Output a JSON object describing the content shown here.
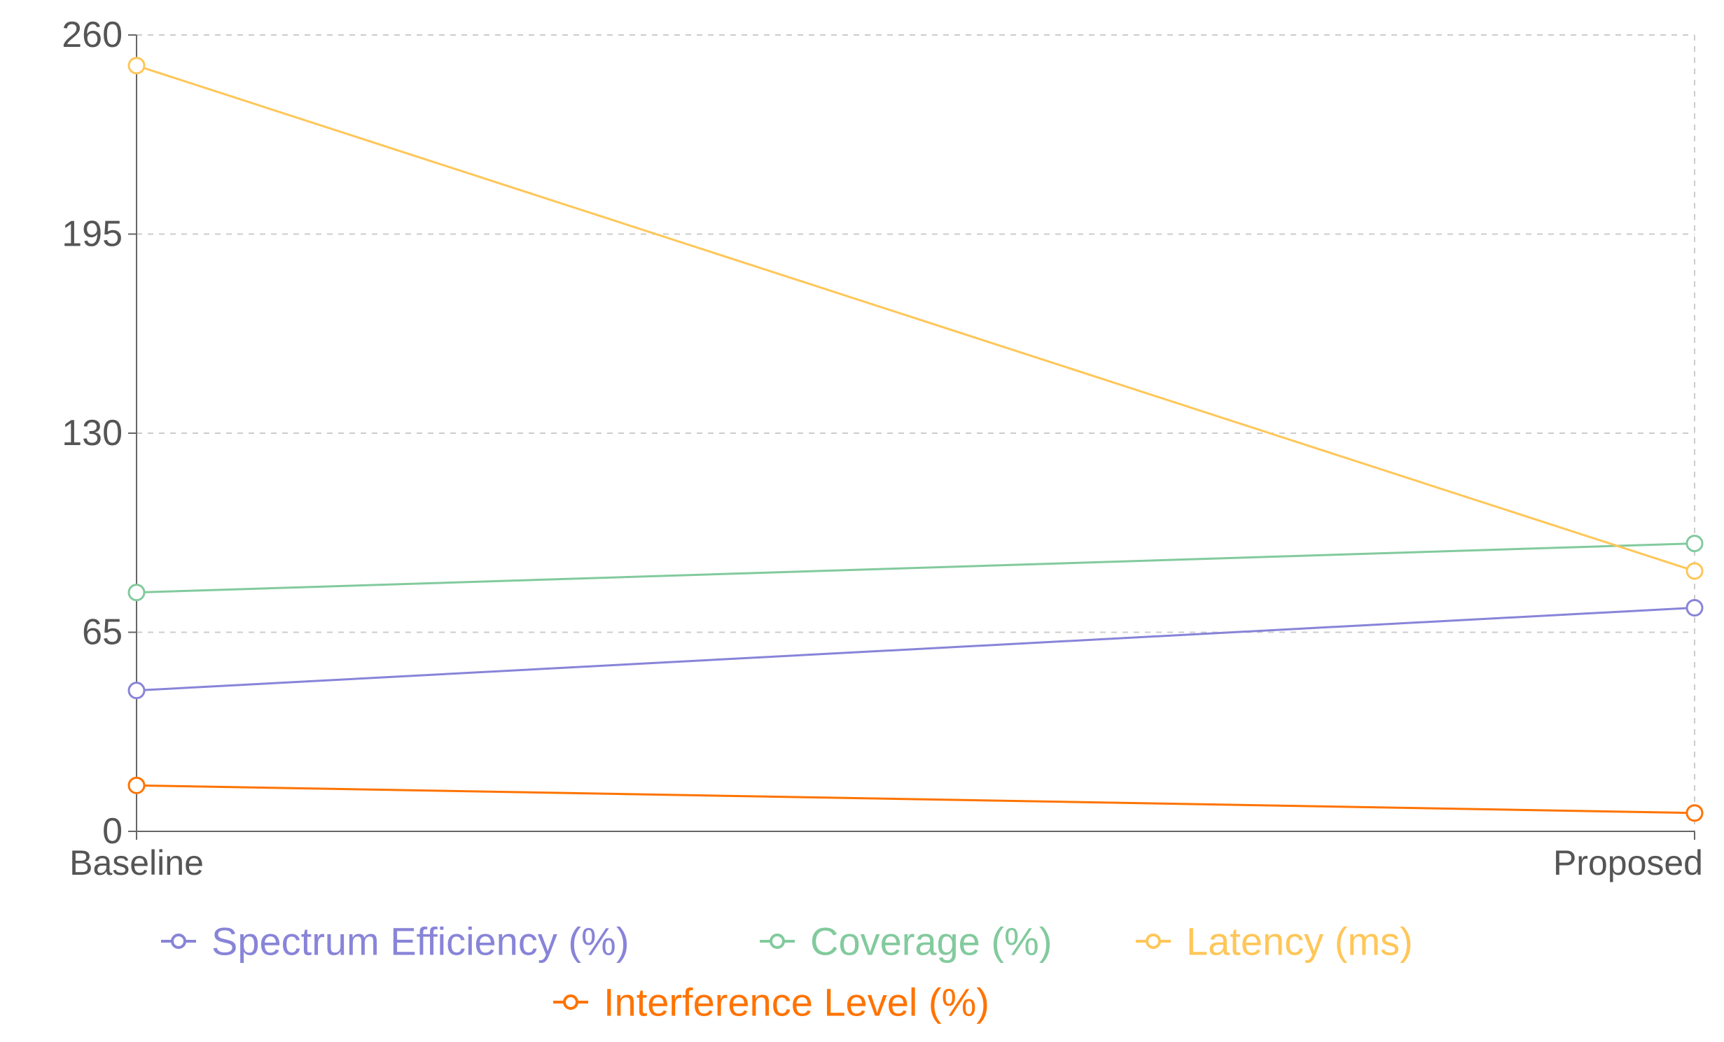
{
  "chart_data": {
    "type": "line",
    "categories": [
      "Baseline",
      "Proposed"
    ],
    "ylim": [
      0,
      260
    ],
    "yticks": [
      0,
      65,
      130,
      195,
      260
    ],
    "grid": true,
    "legend_position": "bottom",
    "series": [
      {
        "name": "Spectrum Efficiency (%)",
        "color": "#8884d8",
        "values": [
          46,
          73
        ]
      },
      {
        "name": "Coverage (%)",
        "color": "#82ca9d",
        "values": [
          78,
          94
        ]
      },
      {
        "name": "Latency (ms)",
        "color": "#ffc658",
        "values": [
          250,
          85
        ]
      },
      {
        "name": "Interference Level (%)",
        "color": "#ff7300",
        "values": [
          15,
          6
        ]
      }
    ]
  }
}
